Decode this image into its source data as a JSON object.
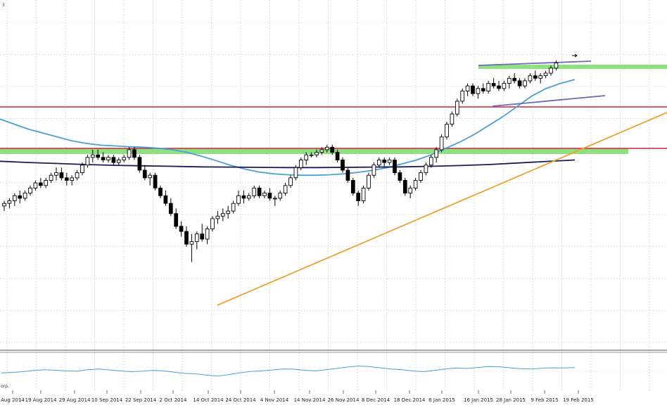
{
  "window": {
    "corner_top": "3",
    "corner_osc": "orp."
  },
  "chart_data": {
    "type": "candlestick",
    "x_ticks": [
      "Aug 2014",
      "19 Aug 2014",
      "29 Aug 2014",
      "10 Sep 2014",
      "22 Sep 2014",
      "2 Oct 2014",
      "14 Oct 2014",
      "24 Oct 2014",
      "4 Nov 2014",
      "14 Nov 2014",
      "26 Nov 2014",
      "8 Dec 2014",
      "18 Dec 2014",
      "6 Jan 2015",
      "16 Jan 2015",
      "28 Jan 2015",
      "9 Feb 2015",
      "19 Feb 2015"
    ],
    "grid": true,
    "y_range": [
      0,
      100
    ],
    "candles": [
      [
        40.0,
        42.0,
        38.0,
        41.0
      ],
      [
        41.0,
        43.0,
        39.0,
        42.0
      ],
      [
        42.0,
        45.0,
        40.0,
        44.0
      ],
      [
        44.0,
        46.0,
        41.0,
        43.0
      ],
      [
        43.0,
        46.0,
        42.0,
        45.0
      ],
      [
        45.0,
        48.0,
        44.0,
        47.0
      ],
      [
        47.0,
        50.0,
        46.0,
        49.0
      ],
      [
        49.0,
        51.0,
        47.0,
        48.0
      ],
      [
        48.0,
        51.0,
        47.0,
        50.0
      ],
      [
        50.0,
        53.0,
        49.0,
        52.0
      ],
      [
        52.0,
        55.0,
        50.0,
        53.0
      ],
      [
        53.0,
        55.0,
        50.0,
        51.0
      ],
      [
        51.0,
        53.0,
        48.0,
        50.0
      ],
      [
        50.0,
        52.0,
        48.0,
        51.0
      ],
      [
        51.0,
        54.0,
        50.0,
        53.0
      ],
      [
        53.0,
        57.0,
        52.0,
        56.0
      ],
      [
        56.0,
        60.0,
        55.0,
        59.0
      ],
      [
        59.0,
        62.0,
        57.0,
        60.0
      ],
      [
        60.0,
        62.0,
        58.0,
        59.0
      ],
      [
        59.0,
        61.0,
        57.0,
        58.0
      ],
      [
        58.0,
        60.0,
        57.0,
        59.0
      ],
      [
        59.0,
        60.0,
        56.0,
        57.0
      ],
      [
        57.0,
        59.0,
        56.0,
        58.0
      ],
      [
        58.0,
        60.0,
        57.0,
        59.0
      ],
      [
        59.0,
        63.0,
        58.0,
        62.0
      ],
      [
        62.0,
        63.0,
        58.0,
        59.0
      ],
      [
        59.0,
        60.0,
        53.0,
        54.0
      ],
      [
        54.0,
        56.0,
        50.0,
        51.0
      ],
      [
        51.0,
        53.0,
        48.0,
        52.0
      ],
      [
        52.0,
        53.0,
        46.0,
        47.0
      ],
      [
        47.0,
        48.0,
        43.0,
        44.0
      ],
      [
        44.0,
        46.0,
        40.0,
        41.0
      ],
      [
        41.0,
        43.0,
        36.0,
        37.0
      ],
      [
        37.0,
        39.0,
        31.0,
        32.0
      ],
      [
        32.0,
        34.0,
        28.0,
        30.0
      ],
      [
        30.0,
        32.0,
        24.0,
        25.0
      ],
      [
        25.0,
        29.0,
        18.0,
        26.0
      ],
      [
        26.0,
        30.0,
        23.0,
        29.0
      ],
      [
        29.0,
        33.0,
        26.0,
        27.0
      ],
      [
        27.0,
        32.0,
        25.0,
        31.0
      ],
      [
        31.0,
        36.0,
        30.0,
        35.0
      ],
      [
        35.0,
        38.0,
        33.0,
        36.0
      ],
      [
        36.0,
        39.0,
        34.0,
        37.0
      ],
      [
        37.0,
        40.0,
        35.0,
        38.0
      ],
      [
        38.0,
        42.0,
        37.0,
        41.0
      ],
      [
        41.0,
        46.0,
        40.0,
        44.0
      ],
      [
        44.0,
        46.0,
        41.0,
        43.0
      ],
      [
        43.0,
        45.0,
        42.0,
        44.0
      ],
      [
        44.0,
        48.0,
        43.0,
        47.0
      ],
      [
        47.0,
        48.0,
        43.0,
        44.0
      ],
      [
        44.0,
        46.0,
        43.0,
        45.0
      ],
      [
        45.0,
        47.0,
        42.0,
        43.0
      ],
      [
        43.0,
        44.0,
        40.0,
        43.0
      ],
      [
        43.0,
        46.0,
        42.0,
        45.0
      ],
      [
        45.0,
        49.0,
        44.0,
        48.0
      ],
      [
        48.0,
        52.0,
        47.0,
        51.0
      ],
      [
        51.0,
        56.0,
        50.0,
        55.0
      ],
      [
        55.0,
        59.0,
        54.0,
        58.0
      ],
      [
        58.0,
        61.0,
        56.0,
        60.0
      ],
      [
        60.0,
        61.0,
        59.0,
        60.0
      ],
      [
        60.0,
        62.0,
        59.0,
        61.0
      ],
      [
        61.0,
        63.0,
        60.0,
        62.0
      ],
      [
        62.0,
        64.0,
        61.0,
        63.0
      ],
      [
        63.0,
        64.0,
        60.0,
        61.0
      ],
      [
        61.0,
        62.0,
        57.0,
        58.0
      ],
      [
        58.0,
        59.0,
        53.0,
        54.0
      ],
      [
        54.0,
        55.0,
        49.0,
        50.0
      ],
      [
        50.0,
        51.0,
        44.0,
        45.0
      ],
      [
        45.0,
        46.0,
        40.0,
        42.0
      ],
      [
        42.0,
        48.0,
        41.0,
        47.0
      ],
      [
        47.0,
        53.0,
        46.0,
        52.0
      ],
      [
        52.0,
        57.0,
        51.0,
        56.0
      ],
      [
        56.0,
        59.0,
        55.0,
        58.0
      ],
      [
        58.0,
        59.0,
        55.0,
        57.0
      ],
      [
        57.0,
        59.0,
        56.0,
        58.0
      ],
      [
        58.0,
        59.0,
        52.0,
        53.0
      ],
      [
        53.0,
        54.0,
        49.0,
        50.0
      ],
      [
        50.0,
        51.0,
        44.0,
        45.0
      ],
      [
        45.0,
        48.0,
        43.0,
        47.0
      ],
      [
        47.0,
        51.0,
        46.0,
        50.0
      ],
      [
        50.0,
        54.0,
        49.0,
        53.0
      ],
      [
        53.0,
        57.0,
        52.0,
        56.0
      ],
      [
        56.0,
        60.0,
        55.0,
        59.0
      ],
      [
        59.0,
        63.0,
        57.0,
        62.0
      ],
      [
        62.0,
        68.0,
        61.0,
        67.0
      ],
      [
        67.0,
        73.0,
        66.0,
        72.0
      ],
      [
        72.0,
        77.0,
        71.0,
        76.0
      ],
      [
        76.0,
        82.0,
        75.0,
        81.0
      ],
      [
        81.0,
        86.0,
        80.0,
        85.0
      ],
      [
        85.0,
        88.0,
        83.0,
        87.0
      ],
      [
        87.0,
        88.0,
        83.0,
        84.0
      ],
      [
        84.0,
        87.0,
        82.0,
        86.0
      ],
      [
        86.0,
        88.0,
        84.0,
        85.0
      ],
      [
        85.0,
        89.0,
        84.0,
        88.0
      ],
      [
        88.0,
        90.0,
        86.0,
        87.0
      ],
      [
        87.0,
        89.0,
        85.0,
        86.0
      ],
      [
        86.0,
        89.0,
        85.0,
        88.0
      ],
      [
        88.0,
        91.0,
        86.0,
        90.0
      ],
      [
        90.0,
        92.0,
        88.0,
        89.0
      ],
      [
        89.0,
        90.0,
        86.0,
        87.0
      ],
      [
        87.0,
        90.0,
        86.0,
        89.0
      ],
      [
        89.0,
        92.0,
        88.0,
        91.0
      ],
      [
        91.0,
        93.0,
        89.0,
        90.0
      ],
      [
        90.0,
        92.0,
        88.0,
        91.0
      ],
      [
        91.0,
        93.0,
        90.0,
        92.0
      ],
      [
        92.0,
        95.0,
        91.0,
        94.0
      ],
      [
        94.0,
        97.0,
        93.0,
        96.0
      ]
    ],
    "moving_averages": [
      {
        "color": "#4a9fd5",
        "values": [
          74.0,
          72.0,
          70.0,
          68.5,
          67.0,
          65.5,
          64.5,
          63.8,
          63.5,
          63.2,
          63.0,
          62.6,
          62.0,
          61.0,
          59.5,
          57.8,
          56.0,
          54.5,
          53.3,
          52.6,
          52.2,
          52.0,
          52.0,
          52.2,
          52.6,
          53.2,
          54.0,
          55.0,
          56.5,
          58.0,
          60.0,
          62.5,
          65.0,
          68.0,
          71.5,
          75.0,
          79.0,
          83.0,
          86.0,
          88.0,
          89.5
        ]
      },
      {
        "color": "#1a1a5e",
        "values": [
          57.5,
          57.0,
          56.6,
          56.2,
          55.9,
          55.7,
          55.5,
          55.3,
          55.2,
          55.1,
          55.0,
          55.0,
          55.1,
          55.2,
          55.3,
          55.5,
          55.8,
          56.2,
          56.8,
          57.4,
          58.0
        ]
      }
    ],
    "horizontal_lines": [
      {
        "color": "#8fe07f",
        "kind": "zone"
      },
      {
        "color": "#8fe07f",
        "kind": "zone"
      },
      {
        "color": "#c8283c",
        "kind": "line"
      },
      {
        "color": "#c8283c",
        "kind": "line"
      }
    ],
    "trend_lines": [
      {
        "color": "#f0a030",
        "from": [
          0,
          0
        ],
        "to": [
          1,
          1
        ]
      },
      {
        "color": "#6a6ab8",
        "from": [
          0,
          0
        ],
        "to": [
          1,
          1
        ]
      },
      {
        "color": "#6a6ab8",
        "from": [
          0,
          0
        ],
        "to": [
          1,
          1
        ]
      }
    ],
    "oscillator": {
      "color": "#4a9fd5",
      "values": [
        42,
        44,
        47,
        52,
        55,
        53,
        50,
        49,
        55,
        58,
        54,
        50,
        47,
        49,
        52,
        50,
        45,
        40,
        38,
        33,
        29,
        35,
        42,
        48,
        50,
        54,
        58,
        57,
        53,
        50,
        55,
        60,
        66,
        70,
        68,
        63,
        58,
        55,
        50,
        47,
        52,
        58,
        62,
        60,
        64,
        68,
        67,
        63,
        59,
        58,
        61,
        63,
        62,
        64
      ]
    },
    "colors": {
      "background": "#ffffff",
      "grid": "#c8c8c8",
      "candle_up": "#ffffff",
      "candle_down": "#000000",
      "wick": "#000000"
    }
  }
}
